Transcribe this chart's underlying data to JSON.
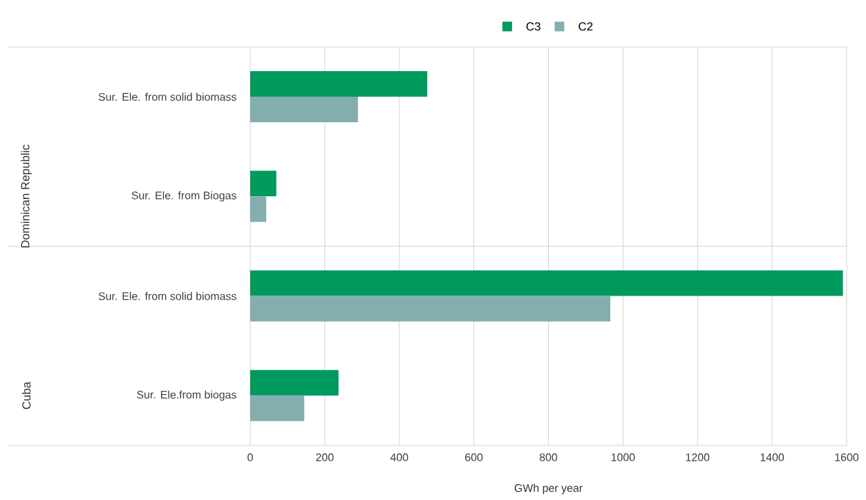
{
  "chart_data": {
    "type": "bar",
    "orientation": "horizontal",
    "xlabel": "GWh per year",
    "categories": [
      "Sur. Ele. from solid biomass",
      "Sur. Ele. from Biogas",
      "Sur. Ele. from solid biomass",
      "Sur. Ele.from biogas"
    ],
    "series": [
      {
        "name": "C3",
        "color": "#00995e",
        "values": [
          475,
          70,
          1590,
          237
        ]
      },
      {
        "name": "C2",
        "color": "#84aeae",
        "values": [
          289,
          43,
          966,
          145
        ]
      }
    ],
    "annotations": [
      "Dominican Republic",
      "Cuba"
    ],
    "xlim": [
      0,
      1600
    ],
    "xticks": [
      0,
      200,
      400,
      600,
      800,
      1000,
      1200,
      1400,
      1600
    ],
    "grid": "x",
    "legend": "top"
  }
}
